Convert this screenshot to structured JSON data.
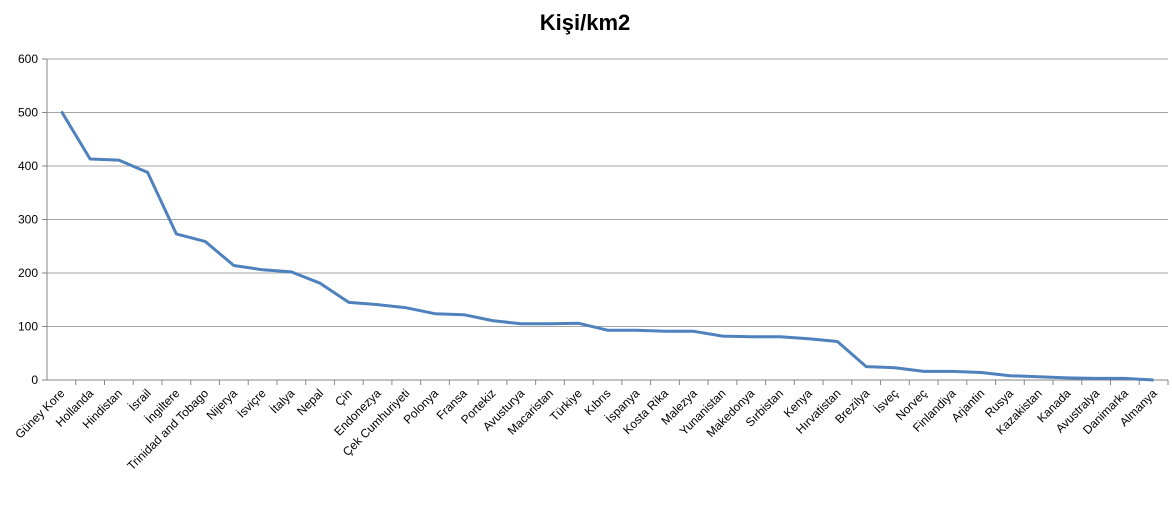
{
  "chart_data": {
    "type": "line",
    "title": "Kişi/km2",
    "xlabel": "",
    "ylabel": "",
    "ylim": [
      0,
      600
    ],
    "yticks": [
      0,
      100,
      200,
      300,
      400,
      500,
      600
    ],
    "grid": true,
    "legend": "none",
    "line_color": "#4f81bd",
    "categories": [
      "Güney Kore",
      "Hollanda",
      "Hindistan",
      "İsrail",
      "İngiltere",
      "Trinidad and Tobago",
      "Nijerya",
      "İsviçre",
      "İtalya",
      "Nepal",
      "Çin",
      "Endonezya",
      "Çek Cumhuriyeti",
      "Polonya",
      "Fransa",
      "Portekiz",
      "Avusturya",
      "Macaristan",
      "Türkiye",
      "Kıbrıs",
      "İspanya",
      "Kosta Rika",
      "Malezya",
      "Yunanistan",
      "Makedonya",
      "Sırbistan",
      "Kenya",
      "Hırvatistan",
      "Brezilya",
      "İsveç",
      "Norveç",
      "Finlandiya",
      "Arjantin",
      "Rusya",
      "Kazakistan",
      "Kanada",
      "Avustralya",
      "Danimarka",
      "Almanya"
    ],
    "values": [
      502,
      413,
      411,
      388,
      273,
      259,
      214,
      206,
      202,
      181,
      145,
      141,
      135,
      124,
      122,
      111,
      105,
      105,
      106,
      93,
      93,
      91,
      91,
      82,
      81,
      81,
      77,
      72,
      25,
      23,
      16,
      16,
      14,
      8,
      6,
      4,
      3,
      3,
      0
    ]
  }
}
